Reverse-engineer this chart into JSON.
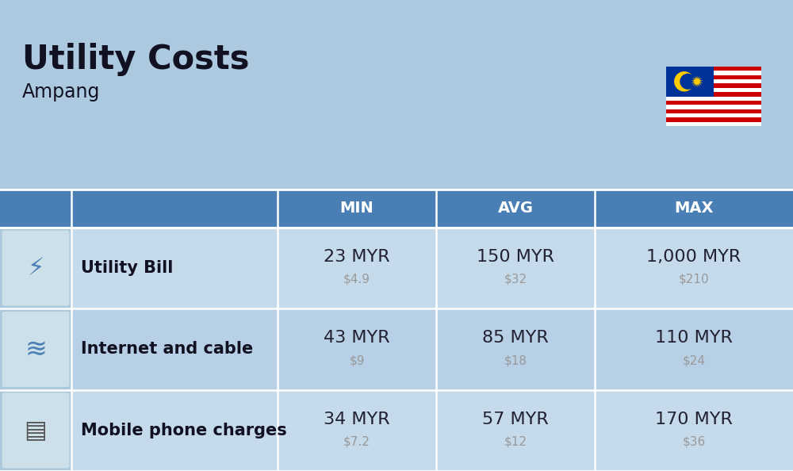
{
  "title": "Utility Costs",
  "subtitle": "Ampang",
  "background_color": "#adc9e0",
  "header_bg_color": "#4a7fb5",
  "header_text_color": "#ffffff",
  "row_bg_color_1": "#c5daea",
  "row_bg_color_2": "#b8d0e5",
  "table_border_color": "#ffffff",
  "columns": [
    "MIN",
    "AVG",
    "MAX"
  ],
  "rows": [
    {
      "label": "Utility Bill",
      "min_myr": "23 MYR",
      "min_usd": "$4.9",
      "avg_myr": "150 MYR",
      "avg_usd": "$32",
      "max_myr": "1,000 MYR",
      "max_usd": "$210"
    },
    {
      "label": "Internet and cable",
      "min_myr": "43 MYR",
      "min_usd": "$9",
      "avg_myr": "85 MYR",
      "avg_usd": "$18",
      "max_myr": "110 MYR",
      "max_usd": "$24"
    },
    {
      "label": "Mobile phone charges",
      "min_myr": "34 MYR",
      "min_usd": "$7.2",
      "avg_myr": "57 MYR",
      "avg_usd": "$12",
      "max_myr": "170 MYR",
      "max_usd": "$36"
    }
  ],
  "title_fontsize": 30,
  "subtitle_fontsize": 17,
  "header_fontsize": 14,
  "cell_fontsize_main": 16,
  "cell_fontsize_sub": 11,
  "label_fontsize": 15,
  "myr_text_color": "#222233",
  "usd_text_color": "#999999",
  "label_text_color": "#111122"
}
